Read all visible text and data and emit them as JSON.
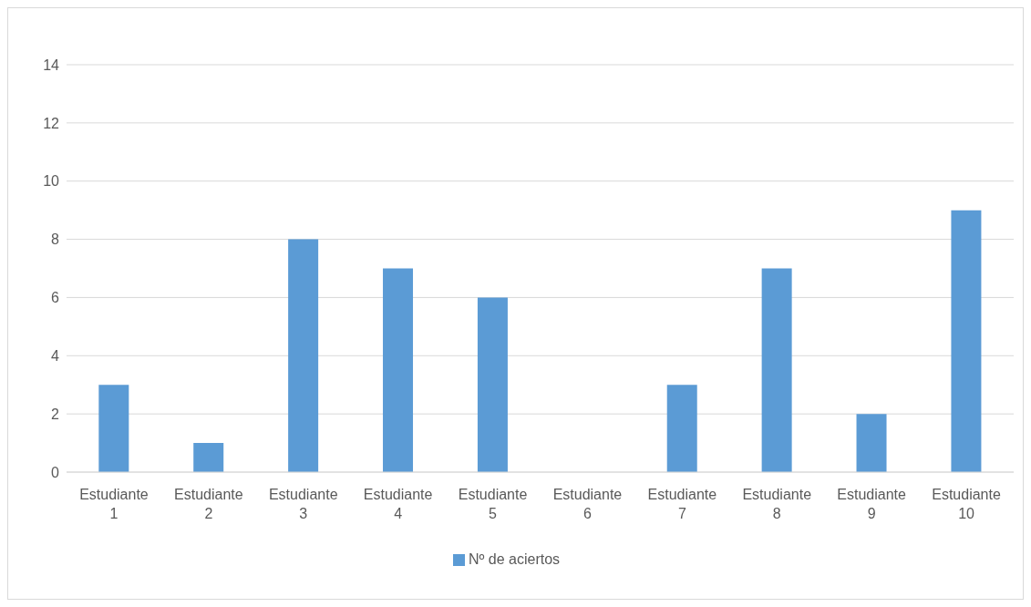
{
  "chart_data": {
    "type": "bar",
    "categories": [
      "Estudiante 1",
      "Estudiante 2",
      "Estudiante 3",
      "Estudiante 4",
      "Estudiante 5",
      "Estudiante 6",
      "Estudiante 7",
      "Estudiante 8",
      "Estudiante 9",
      "Estudiante 10"
    ],
    "series": [
      {
        "name": "Nº de aciertos",
        "color": "#5b9bd5",
        "values": [
          3,
          1,
          8,
          7,
          6,
          0,
          3,
          7,
          2,
          9
        ]
      }
    ],
    "ylim": [
      0,
      14
    ],
    "yticks": [
      0,
      2,
      4,
      6,
      8,
      10,
      12,
      14
    ],
    "grid": "y",
    "legend": "bottom"
  }
}
